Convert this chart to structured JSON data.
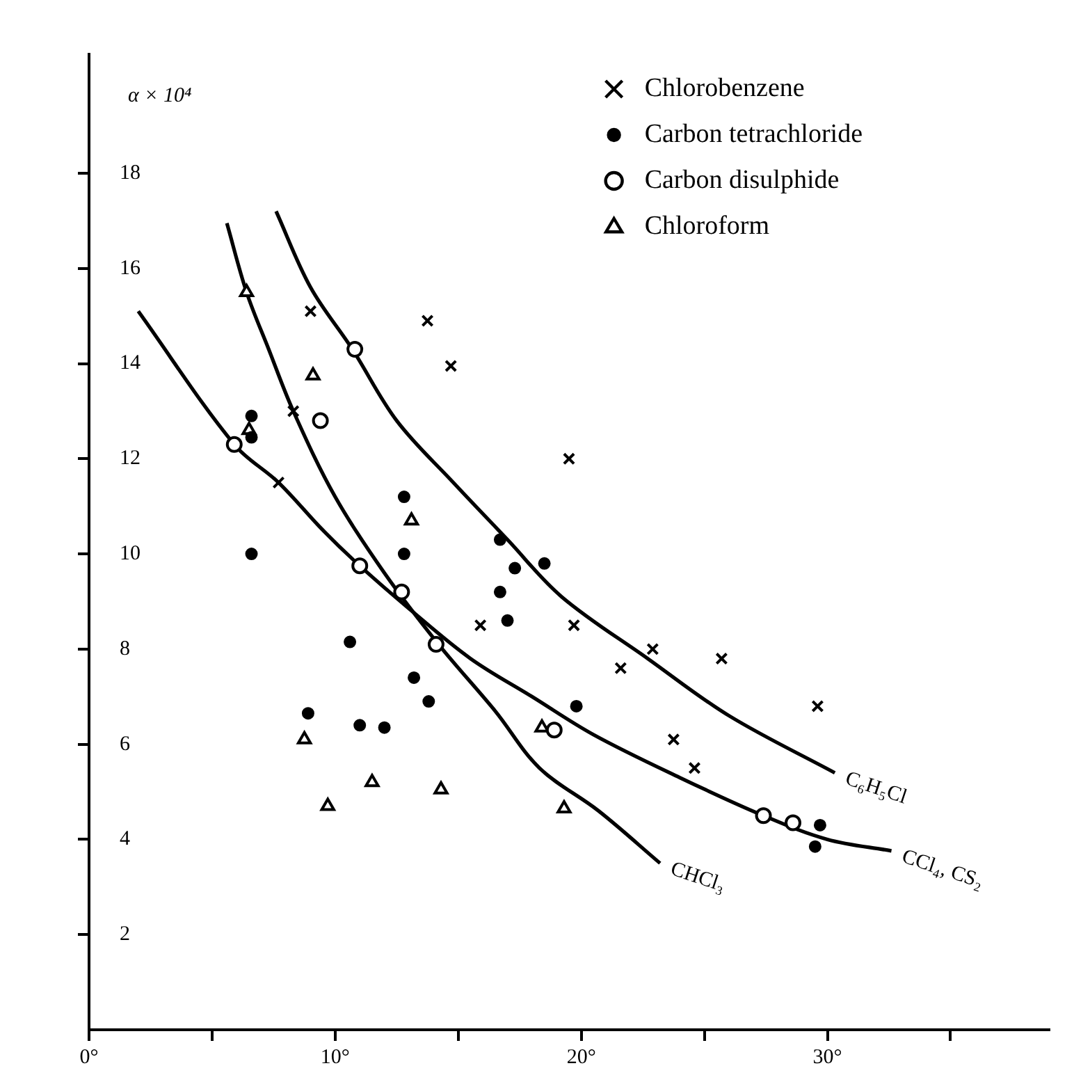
{
  "chart_data": {
    "type": "scatter",
    "ylabel": "α × 10⁴",
    "xlim": [
      0,
      39
    ],
    "ylim": [
      0,
      20.5
    ],
    "xticks": [
      {
        "value": 0,
        "label": "0°"
      },
      {
        "value": 5,
        "label": null
      },
      {
        "value": 10,
        "label": "10°"
      },
      {
        "value": 15,
        "label": null
      },
      {
        "value": 20,
        "label": "20°"
      },
      {
        "value": 25,
        "label": null
      },
      {
        "value": 30,
        "label": "30°"
      },
      {
        "value": 35,
        "label": null
      }
    ],
    "yticks": [
      2,
      4,
      6,
      8,
      10,
      12,
      14,
      16,
      18
    ],
    "grid": false,
    "legend": "top right",
    "series": [
      {
        "name": "Chlorobenzene",
        "color": "#000000",
        "marker": "cross",
        "x": [
          9.0,
          8.3,
          7.7,
          13.75,
          14.7,
          19.5,
          15.9,
          19.7,
          21.6,
          22.9,
          25.7,
          29.6,
          23.75,
          24.6
        ],
        "values": [
          15.1,
          13.0,
          11.5,
          14.9,
          13.95,
          12.0,
          8.5,
          8.5,
          7.6,
          8.0,
          7.8,
          6.8,
          6.1,
          5.5
        ]
      },
      {
        "name": "Carbon tetrachloride",
        "color": "#000000",
        "marker": "circle",
        "x": [
          6.6,
          6.6,
          6.6,
          12.8,
          12.8,
          16.7,
          17.3,
          18.5,
          16.7,
          17.0,
          19.8,
          13.2,
          13.8,
          8.9,
          11.0,
          29.7,
          29.5,
          12.0,
          10.6
        ],
        "values": [
          12.9,
          12.45,
          10.0,
          11.2,
          10.0,
          10.3,
          9.7,
          9.8,
          9.2,
          8.6,
          6.8,
          7.4,
          6.9,
          6.65,
          6.4,
          4.3,
          3.85,
          6.35,
          8.15
        ]
      },
      {
        "name": "Carbon disulphide",
        "color": "#ffffff",
        "marker": "circle",
        "x": [
          5.9,
          9.4,
          10.8,
          11.0,
          12.7,
          14.1,
          18.9,
          27.4,
          28.6
        ],
        "values": [
          12.3,
          12.8,
          14.3,
          9.75,
          9.2,
          8.1,
          6.3,
          4.5,
          4.35
        ]
      },
      {
        "name": "Chloroform",
        "color": "#ffffff",
        "marker": "triangle",
        "x": [
          6.4,
          9.1,
          6.5,
          13.1,
          8.75,
          11.5,
          14.3,
          9.7,
          19.3,
          18.4
        ],
        "values": [
          15.5,
          13.75,
          12.6,
          10.7,
          6.1,
          5.2,
          5.05,
          4.7,
          4.65,
          6.35
        ]
      },
      {
        "type": "line",
        "color": "#000000",
        "marker": "none",
        "x": [
          7.6,
          9.0,
          10.7,
          12.5,
          14.8,
          17.0,
          19.2,
          22.7,
          26.0,
          30.3
        ],
        "values": [
          17.2,
          15.6,
          14.3,
          12.8,
          11.5,
          10.3,
          9.1,
          7.8,
          6.6,
          5.4
        ]
      },
      {
        "type": "line",
        "color": "#000000",
        "marker": "none",
        "x": [
          5.6,
          6.4,
          7.3,
          8.3,
          10.0,
          12.0,
          14.2,
          16.5,
          18.3,
          20.7,
          23.2
        ],
        "values": [
          16.95,
          15.5,
          14.3,
          13.0,
          11.2,
          9.6,
          8.1,
          6.7,
          5.5,
          4.6,
          3.5
        ]
      },
      {
        "type": "line",
        "color": "#000000",
        "marker": "none",
        "x": [
          2.0,
          5.9,
          7.7,
          9.5,
          11.0,
          13.0,
          15.5,
          18.0,
          20.5,
          24.0,
          27.4,
          30.0,
          32.6
        ],
        "values": [
          15.1,
          12.3,
          11.5,
          10.5,
          9.75,
          8.85,
          7.8,
          7.0,
          6.2,
          5.3,
          4.5,
          4.0,
          3.76
        ]
      }
    ],
    "annotations": [
      {
        "text": "C₆H₅Cl",
        "x": 30.3,
        "y": 5.4
      },
      {
        "text": "CHCl₃",
        "x": 23.2,
        "y": 3.5
      },
      {
        "text": "CCl₄, CS₂",
        "x": 32.6,
        "y": 3.76
      }
    ]
  }
}
